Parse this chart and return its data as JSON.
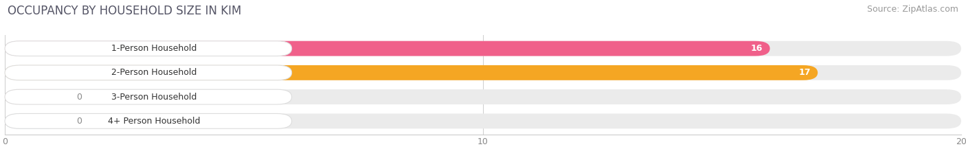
{
  "title": "OCCUPANCY BY HOUSEHOLD SIZE IN KIM",
  "source": "Source: ZipAtlas.com",
  "categories": [
    "1-Person Household",
    "2-Person Household",
    "3-Person Household",
    "4+ Person Household"
  ],
  "values": [
    16,
    17,
    0,
    0
  ],
  "bar_colors": [
    "#f0608a",
    "#f5a623",
    "#f4a0a0",
    "#a8c4e0"
  ],
  "bar_bg_color": "#ebebeb",
  "xlim": [
    0,
    20
  ],
  "xticks": [
    0,
    10,
    20
  ],
  "title_fontsize": 12,
  "source_fontsize": 9,
  "tick_fontsize": 9,
  "bar_label_fontsize": 9,
  "cat_fontsize": 9,
  "background_color": "#ffffff"
}
